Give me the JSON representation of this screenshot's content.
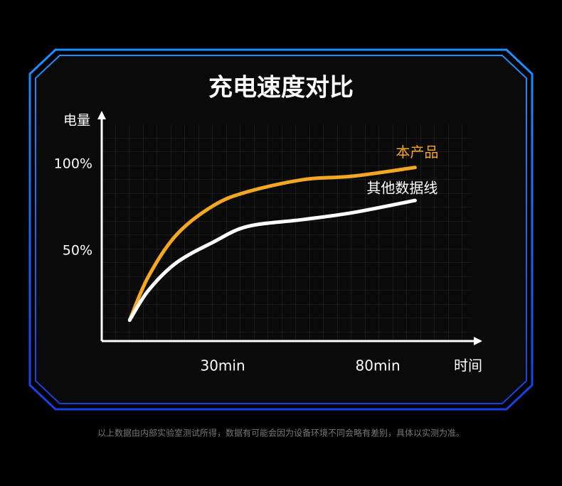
{
  "chart_data": {
    "type": "line",
    "title": "充电速度对比",
    "y_label": "电量",
    "x_label": "时间",
    "x": [
      0,
      6,
      15,
      27,
      38,
      56,
      72,
      92
    ],
    "series": [
      {
        "name": "本产品",
        "color": "#f5a623",
        "values": [
          10,
          35,
          59,
          76,
          84,
          91,
          93,
          98
        ]
      },
      {
        "name": "其他数据线",
        "color": "#ffffff",
        "values": [
          10,
          27,
          43,
          55,
          64,
          68,
          72,
          79
        ]
      }
    ],
    "xlim": [
      -9,
      113
    ],
    "ylim": [
      0,
      129
    ],
    "xticks": [
      {
        "value": 30,
        "label": "30min"
      },
      {
        "value": 80,
        "label": "80min"
      }
    ],
    "yticks": [
      {
        "value": 50,
        "label": "50%"
      },
      {
        "value": 100,
        "label": "100%"
      }
    ],
    "footnote": "以上数据由内部实验室测试所得，数据有可能会因为设备环境不同会略有差别，具体以实测为准。"
  }
}
